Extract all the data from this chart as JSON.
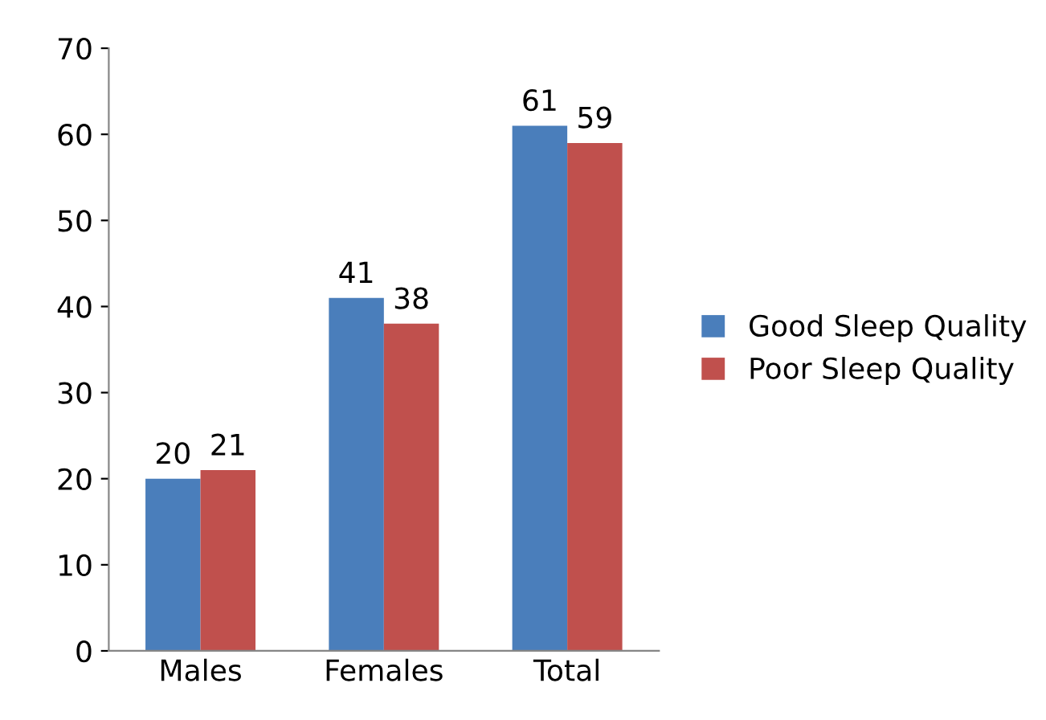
{
  "chart_data": {
    "type": "bar",
    "categories": [
      "Males",
      "Females",
      "Total"
    ],
    "series": [
      {
        "name": "Good Sleep Quality",
        "color": "#4a7ebb",
        "values": [
          20,
          41,
          61
        ]
      },
      {
        "name": "Poor Sleep Quality",
        "color": "#c0504d",
        "values": [
          21,
          38,
          59
        ]
      }
    ],
    "ylim": [
      0,
      70
    ],
    "yticks": [
      0,
      10,
      20,
      30,
      40,
      50,
      60,
      70
    ],
    "data_labels": true,
    "grid": false,
    "legend": "right"
  }
}
